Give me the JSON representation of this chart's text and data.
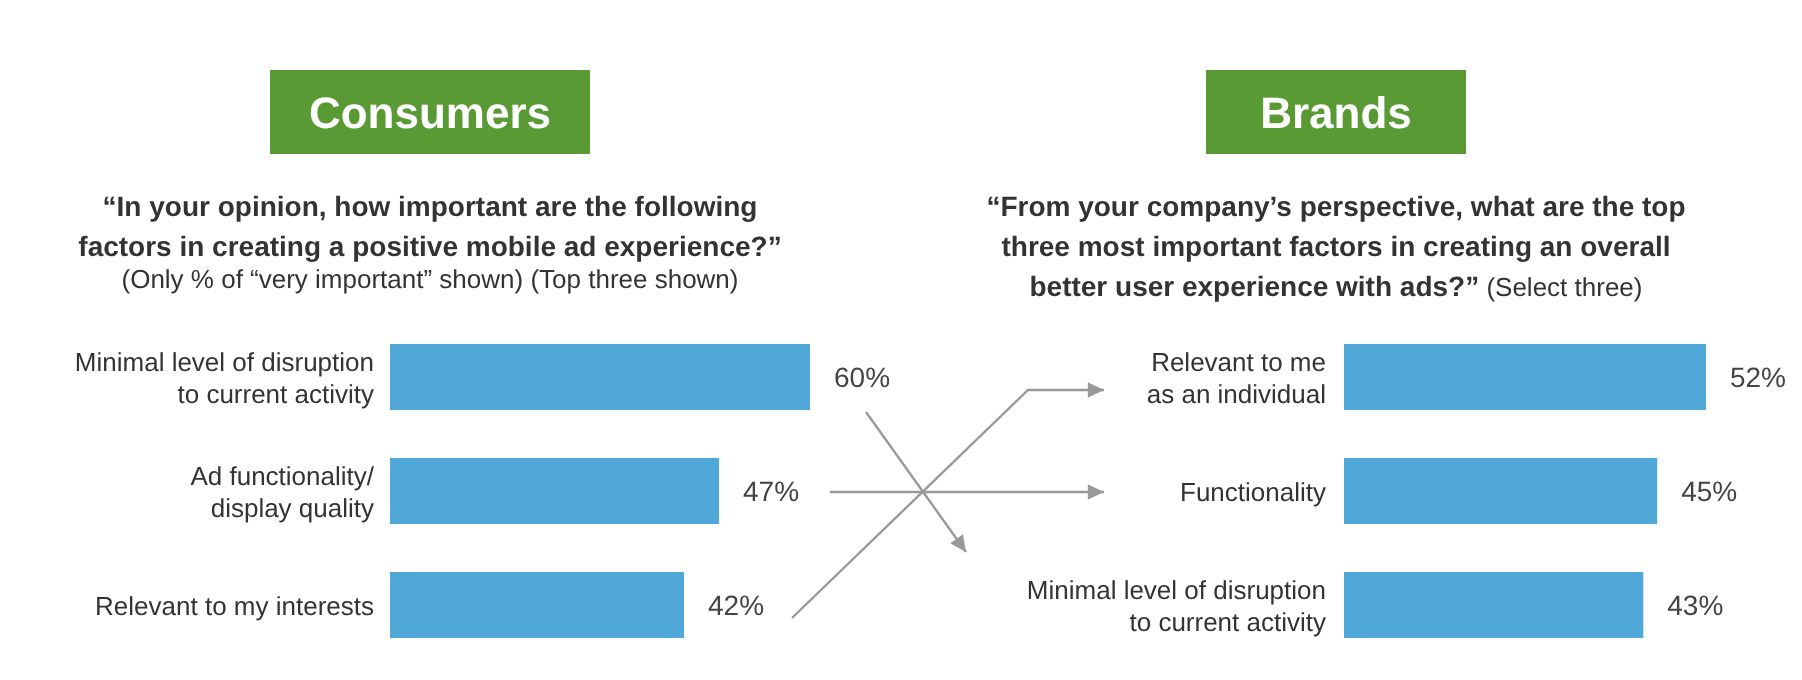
{
  "chart_data": [
    {
      "type": "bar",
      "orientation": "horizontal",
      "title": "Consumers",
      "subtitle": "“In your opinion, how important are the following factors in creating a positive mobile ad experience?”",
      "annotations": [
        "(Only % of “very important” shown) (Top three shown)"
      ],
      "categories": [
        "Minimal level of disruption to current activity",
        "Ad functionality/ display quality",
        "Relevant to my interests"
      ],
      "values": [
        60,
        47,
        42
      ],
      "value_labels": [
        "60%",
        "47%",
        "42%"
      ],
      "color": "#4fa8d8"
    },
    {
      "type": "bar",
      "orientation": "horizontal",
      "title": "Brands",
      "subtitle": "“From your company’s perspective, what are the top three most important factors in creating an overall better user experience with ads?”",
      "annotations": [
        "(Select three)"
      ],
      "categories": [
        "Relevant to me as an individual",
        "Functionality",
        "Minimal level of disruption to current activity"
      ],
      "values": [
        52,
        45,
        43
      ],
      "value_labels": [
        "52%",
        "45%",
        "43%"
      ],
      "color": "#4fa8d8"
    }
  ]
}
